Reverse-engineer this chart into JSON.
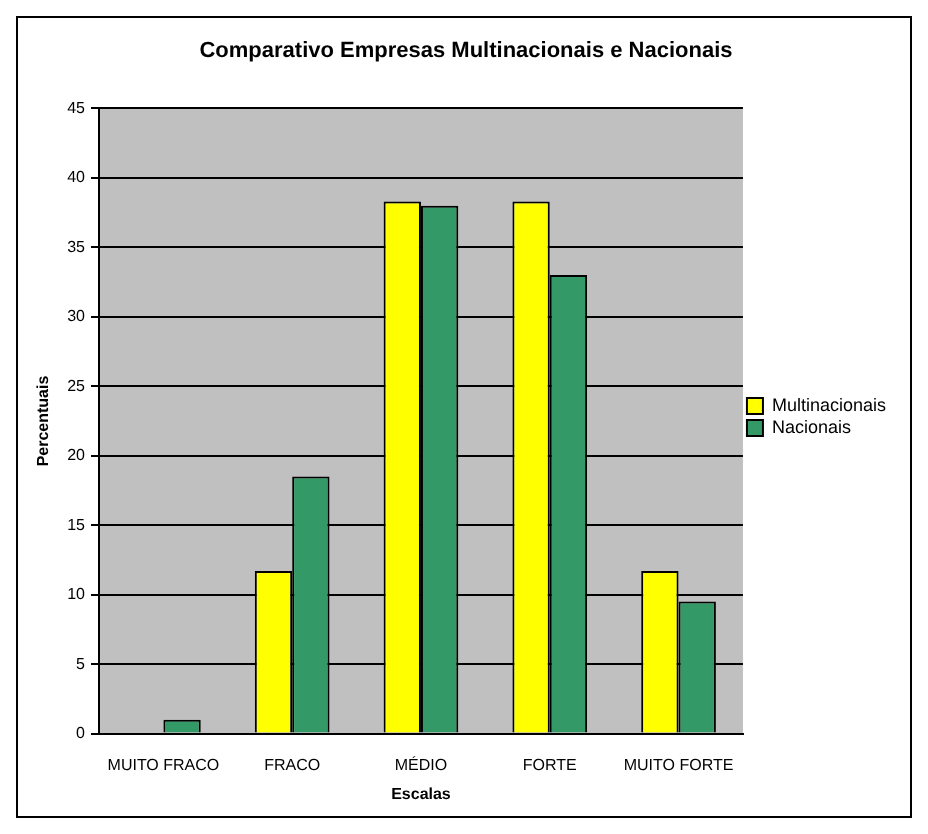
{
  "chart_data": {
    "type": "bar",
    "title": "Comparativo Empresas Multinacionais e Nacionais",
    "xlabel": "Escalas",
    "ylabel": "Percentuais",
    "categories": [
      "MUITO FRACO",
      "FRACO",
      "MÉDIO",
      "FORTE",
      "MUITO FORTE"
    ],
    "series": [
      {
        "name": "Multinacionais",
        "color": "#ffff00",
        "values": [
          0,
          11.7,
          38.3,
          38.3,
          11.7
        ]
      },
      {
        "name": "Nacionais",
        "color": "#339966",
        "values": [
          1,
          18.5,
          38,
          33,
          9.5
        ]
      }
    ],
    "ylim": [
      0,
      45
    ],
    "yticks": [
      0,
      5,
      10,
      15,
      20,
      25,
      30,
      35,
      40,
      45
    ],
    "grid": "y",
    "legend": "right"
  }
}
